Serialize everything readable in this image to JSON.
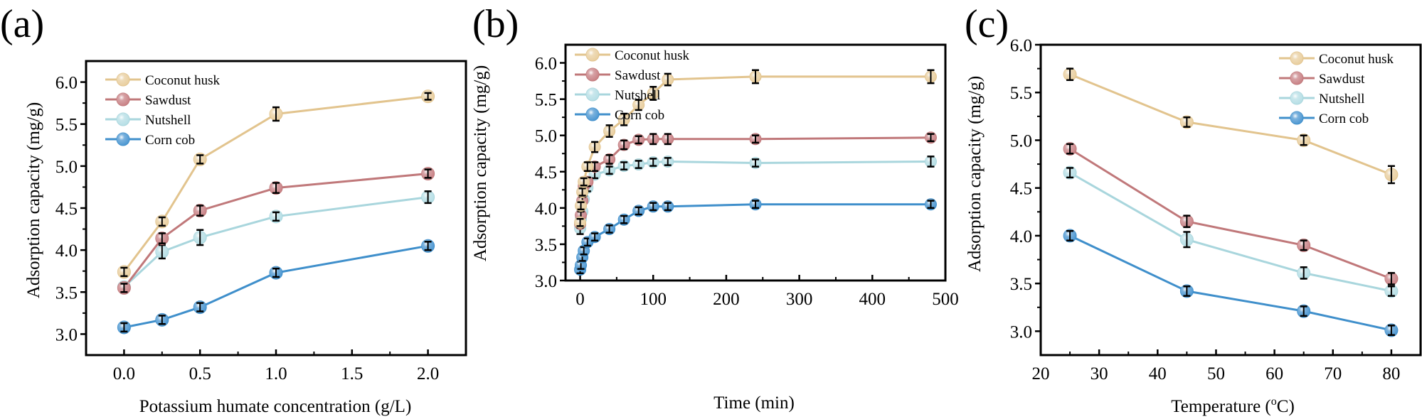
{
  "series_style": {
    "Coconut husk": {
      "color": "#E2C48E",
      "fill": "#E9CFA0"
    },
    "Sawdust": {
      "color": "#C0787A",
      "fill": "#C98387"
    },
    "Nutshell": {
      "color": "#A9D6DD",
      "fill": "#B7DFE6"
    },
    "Corn cob": {
      "color": "#3F8FCB",
      "fill": "#4E98D2"
    }
  },
  "chart_data": [
    {
      "panel_label": "(a)",
      "type": "line",
      "title": "",
      "xlabel": "Potassium humate concentration (g/L)",
      "ylabel": "Adsorption capacity (mg/g)",
      "xlim": [
        -0.25,
        2.25
      ],
      "ylim": [
        2.75,
        6.25
      ],
      "xticks": [
        0.0,
        0.5,
        1.0,
        1.5,
        2.0
      ],
      "xtick_labels": [
        "0.0",
        "0.5",
        "1.0",
        "1.5",
        "2.0"
      ],
      "yticks": [
        3.0,
        3.5,
        4.0,
        4.5,
        5.0,
        5.5,
        6.0
      ],
      "ytick_labels": [
        "3.0",
        "3.5",
        "4.0",
        "4.5",
        "5.0",
        "5.5",
        "6.0"
      ],
      "legend": "top-left",
      "grid": false,
      "x": [
        0.0,
        0.25,
        0.5,
        1.0,
        2.0
      ],
      "series": [
        {
          "name": "Coconut husk",
          "values": [
            3.74,
            4.34,
            5.08,
            5.62,
            5.83
          ],
          "errors": [
            0.05,
            0.05,
            0.05,
            0.08,
            0.04
          ]
        },
        {
          "name": "Sawdust",
          "values": [
            3.55,
            4.14,
            4.47,
            4.74,
            4.91
          ],
          "errors": [
            0.05,
            0.06,
            0.06,
            0.06,
            0.05
          ]
        },
        {
          "name": "Nutshell",
          "values": [
            3.56,
            3.98,
            4.15,
            4.4,
            4.63
          ],
          "errors": [
            0.05,
            0.08,
            0.09,
            0.05,
            0.07
          ]
        },
        {
          "name": "Corn cob",
          "values": [
            3.08,
            3.17,
            3.32,
            3.73,
            4.05
          ],
          "errors": [
            0.05,
            0.05,
            0.05,
            0.05,
            0.05
          ]
        }
      ]
    },
    {
      "panel_label": "(b)",
      "type": "line",
      "title": "",
      "xlabel": "Time (min)",
      "ylabel": "Adsorption capacity (mg/g)",
      "xlim": [
        -20,
        500
      ],
      "ylim": [
        3.0,
        6.25
      ],
      "xticks": [
        0,
        100,
        200,
        300,
        400,
        500
      ],
      "xtick_labels": [
        "0",
        "100",
        "200",
        "300",
        "400",
        "500"
      ],
      "yticks": [
        3.0,
        3.5,
        4.0,
        4.5,
        5.0,
        5.5,
        6.0
      ],
      "ytick_labels": [
        "3.0",
        "3.5",
        "4.0",
        "4.5",
        "5.0",
        "5.5",
        "6.0"
      ],
      "legend": "top-left",
      "grid": false,
      "x": [
        0,
        1,
        3,
        5,
        10,
        20,
        40,
        60,
        80,
        100,
        120,
        240,
        480
      ],
      "series": [
        {
          "name": "Coconut husk",
          "values": [
            3.8,
            4.03,
            4.22,
            4.36,
            4.57,
            4.84,
            5.06,
            5.22,
            5.42,
            5.58,
            5.77,
            5.81,
            5.81
          ],
          "errors": [
            0.05,
            0.05,
            0.05,
            0.05,
            0.06,
            0.07,
            0.08,
            0.08,
            0.07,
            0.09,
            0.08,
            0.09,
            0.09
          ]
        },
        {
          "name": "Sawdust",
          "values": [
            3.78,
            3.9,
            4.1,
            4.3,
            4.36,
            4.57,
            4.67,
            4.87,
            4.94,
            4.95,
            4.95,
            4.95,
            4.97
          ],
          "errors": [
            0.05,
            0.05,
            0.05,
            0.05,
            0.06,
            0.06,
            0.06,
            0.06,
            0.05,
            0.07,
            0.07,
            0.05,
            0.05
          ]
        },
        {
          "name": "Nutshell",
          "values": [
            3.72,
            3.85,
            3.95,
            4.12,
            4.28,
            4.46,
            4.52,
            4.58,
            4.6,
            4.63,
            4.64,
            4.62,
            4.64
          ],
          "errors": [
            0.08,
            0.05,
            0.06,
            0.05,
            0.05,
            0.05,
            0.05,
            0.05,
            0.05,
            0.05,
            0.05,
            0.05,
            0.07
          ]
        },
        {
          "name": "Corn cob",
          "values": [
            3.15,
            3.21,
            3.32,
            3.41,
            3.53,
            3.6,
            3.71,
            3.84,
            3.96,
            4.02,
            4.02,
            4.05,
            4.05
          ],
          "errors": [
            0.05,
            0.05,
            0.05,
            0.05,
            0.05,
            0.05,
            0.05,
            0.05,
            0.05,
            0.05,
            0.05,
            0.05,
            0.05
          ]
        }
      ]
    },
    {
      "panel_label": "(c)",
      "type": "line",
      "title": "",
      "xlabel": "Temperature (°C)",
      "xlabel_main": "Temperature (",
      "xlabel_sup": "o",
      "xlabel_tail": "C)",
      "ylabel": "Adsorption capacity (mg/g)",
      "xlim": [
        20,
        85
      ],
      "ylim": [
        2.75,
        6.0
      ],
      "xticks": [
        20,
        30,
        40,
        50,
        60,
        70,
        80
      ],
      "xtick_labels": [
        "20",
        "30",
        "40",
        "50",
        "60",
        "70",
        "80"
      ],
      "yticks": [
        3.0,
        3.5,
        4.0,
        4.5,
        5.0,
        5.5,
        6.0
      ],
      "ytick_labels": [
        "3.0",
        "3.5",
        "4.0",
        "4.5",
        "5.0",
        "5.5",
        "6.0"
      ],
      "legend": "top-right",
      "grid": false,
      "x": [
        25,
        45,
        65,
        80
      ],
      "series": [
        {
          "name": "Coconut husk",
          "values": [
            5.69,
            5.19,
            5.0,
            4.64
          ],
          "errors": [
            0.06,
            0.05,
            0.05,
            0.09
          ]
        },
        {
          "name": "Sawdust",
          "values": [
            4.91,
            4.15,
            3.9,
            3.55
          ],
          "errors": [
            0.05,
            0.06,
            0.05,
            0.06
          ]
        },
        {
          "name": "Nutshell",
          "values": [
            4.66,
            3.96,
            3.61,
            3.42
          ],
          "errors": [
            0.05,
            0.08,
            0.06,
            0.05
          ]
        },
        {
          "name": "Corn cob",
          "values": [
            4.0,
            3.42,
            3.21,
            3.01
          ],
          "errors": [
            0.05,
            0.05,
            0.05,
            0.05
          ]
        }
      ]
    }
  ]
}
